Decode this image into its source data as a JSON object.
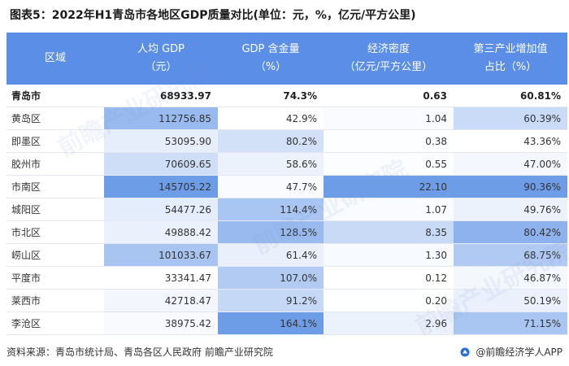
{
  "title": "图表5：2022年H1青岛市各地区GDP质量对比(单位：元，%，亿元/平方公里)",
  "header": {
    "region": "区域",
    "gdp_per_capita": [
      "人均 GDP",
      "（元）"
    ],
    "gdp_content": [
      "GDP 含金量",
      "（%）"
    ],
    "density": [
      "经济密度",
      "（亿元/平方公里）"
    ],
    "tertiary": [
      "第三产业增加值",
      "占比（%）"
    ]
  },
  "rows": [
    {
      "region": "青岛市",
      "gdp_per_capita": "68933.97",
      "gdp_content": "74.3%",
      "density": "0.63",
      "tertiary": "60.81%"
    },
    {
      "region": "黄岛区",
      "gdp_per_capita": "112756.85",
      "gdp_content": "42.9%",
      "density": "1.04",
      "tertiary": "60.39%"
    },
    {
      "region": "即墨区",
      "gdp_per_capita": "53095.90",
      "gdp_content": "80.2%",
      "density": "0.38",
      "tertiary": "43.36%"
    },
    {
      "region": "胶州市",
      "gdp_per_capita": "70609.65",
      "gdp_content": "58.6%",
      "density": "0.55",
      "tertiary": "47.00%"
    },
    {
      "region": "市南区",
      "gdp_per_capita": "145705.22",
      "gdp_content": "47.7%",
      "density": "22.10",
      "tertiary": "90.36%"
    },
    {
      "region": "城阳区",
      "gdp_per_capita": "54477.26",
      "gdp_content": "114.4%",
      "density": "1.07",
      "tertiary": "49.76%"
    },
    {
      "region": "市北区",
      "gdp_per_capita": "49888.42",
      "gdp_content": "128.5%",
      "density": "8.35",
      "tertiary": "80.42%"
    },
    {
      "region": "崂山区",
      "gdp_per_capita": "101033.67",
      "gdp_content": "61.4%",
      "density": "1.30",
      "tertiary": "68.75%"
    },
    {
      "region": "平度市",
      "gdp_per_capita": "33341.47",
      "gdp_content": "107.0%",
      "density": "0.12",
      "tertiary": "46.87%"
    },
    {
      "region": "莱西市",
      "gdp_per_capita": "42718.47",
      "gdp_content": "91.2%",
      "density": "0.20",
      "tertiary": "50.19%"
    },
    {
      "region": "李沧区",
      "gdp_per_capita": "38975.42",
      "gdp_content": "164.1%",
      "density": "2.96",
      "tertiary": "71.15%"
    }
  ],
  "colors": {
    "header_bg": "#5b8ee6",
    "heat_low": "#ffffff",
    "heat_high": "#6e9de8"
  },
  "footer": {
    "source": "资料来源：青岛市统计局、青岛各区人民政府 前瞻产业研究院",
    "brand": "@前瞻经济学人APP"
  }
}
